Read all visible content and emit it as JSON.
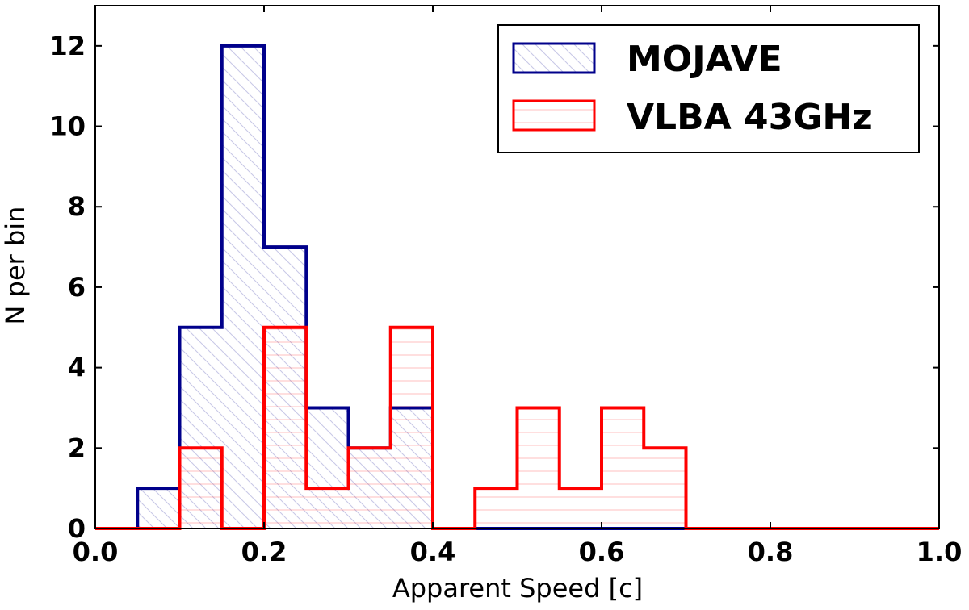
{
  "chart_data": {
    "type": "histogram",
    "title": "",
    "xlabel": "Apparent Speed [c]",
    "ylabel": "N per bin",
    "xlim": [
      0.0,
      1.0
    ],
    "ylim": [
      0,
      13
    ],
    "xticks": [
      "0.0",
      "0.2",
      "0.4",
      "0.6",
      "0.8",
      "1.0"
    ],
    "yticks": [
      "0",
      "2",
      "4",
      "6",
      "8",
      "10",
      "12"
    ],
    "bin_edges": [
      0.0,
      0.05,
      0.1,
      0.15,
      0.2,
      0.25,
      0.3,
      0.35,
      0.4,
      0.45,
      0.5,
      0.55,
      0.6,
      0.65,
      0.7,
      0.75,
      0.8,
      0.85,
      0.9,
      0.95,
      1.0
    ],
    "legend_position": "top-right",
    "series": [
      {
        "name": "MOJAVE",
        "color": "#00008b",
        "hatch": "diagonal",
        "counts": [
          0,
          1,
          5,
          12,
          7,
          3,
          2,
          3,
          0,
          0,
          0,
          0,
          0,
          0,
          0,
          0,
          0,
          0,
          0,
          0
        ]
      },
      {
        "name": "VLBA 43GHz",
        "color": "#ff0000",
        "hatch": "horizontal",
        "counts": [
          0,
          0,
          2,
          0,
          5,
          1,
          2,
          5,
          0,
          1,
          3,
          1,
          3,
          2,
          0,
          0,
          0,
          0,
          0,
          0
        ]
      }
    ]
  }
}
